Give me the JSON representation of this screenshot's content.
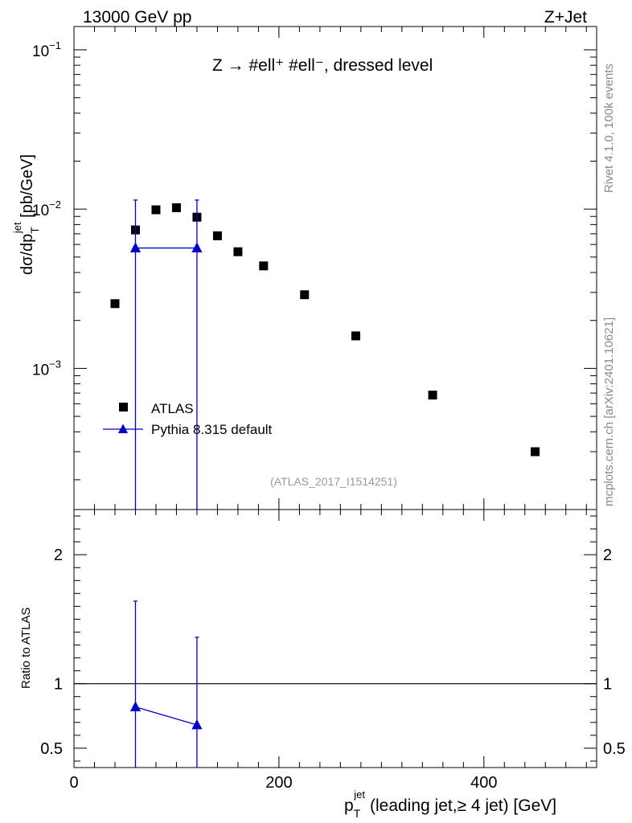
{
  "header": {
    "left": "13000 GeV pp",
    "right": "Z+Jet",
    "process": "Z → #ell⁺ #ell⁻, dressed level",
    "analysis_id": "(ATLAS_2017_I1514251)",
    "side_top": "Rivet 4.1.0,  100k events",
    "side_bottom": "mcplots.cern.ch [arXiv:2401.10621]"
  },
  "chart_data": [
    {
      "type": "scatter",
      "panel": "main",
      "ylabel": "dσ/dp_T^jet [pb/GeV]",
      "yscale": "log",
      "xlim": [
        0,
        510
      ],
      "ylim": [
        0.00013,
        0.14
      ],
      "y_ticks": [
        {
          "value": 0.1,
          "base": "10",
          "exp": "−1"
        },
        {
          "value": 0.01,
          "base": "10",
          "exp": "−2"
        },
        {
          "value": 0.001,
          "base": "10",
          "exp": "−3"
        }
      ],
      "legend": {
        "position": "lower-left",
        "entries": [
          "ATLAS",
          "Pythia 8.315 default"
        ]
      },
      "series": [
        {
          "name": "ATLAS",
          "marker": "square",
          "color": "#000000",
          "x": [
            40,
            60,
            80,
            100,
            120,
            140,
            160,
            185,
            225,
            275,
            350,
            450
          ],
          "y": [
            0.00255,
            0.0074,
            0.0099,
            0.0102,
            0.0089,
            0.0068,
            0.0054,
            0.0044,
            0.0029,
            0.0016,
            0.00068,
            0.0003
          ]
        },
        {
          "name": "Pythia 8.315 default",
          "marker": "triangle",
          "color": "#0000cc",
          "x": [
            60,
            120
          ],
          "y": [
            0.0057,
            0.0057
          ],
          "err_up": [
            0.0114,
            0.0114
          ],
          "err_down": [
            0.00013,
            0.00013
          ]
        }
      ]
    },
    {
      "type": "line",
      "panel": "ratio",
      "ylabel": "Ratio to ATLAS",
      "xlabel": "p_T^jet (leading jet,≥ 4 jet) [GeV]",
      "xlim": [
        0,
        510
      ],
      "ylim": [
        0.35,
        2.35
      ],
      "x_ticks": [
        "0",
        "200",
        "400"
      ],
      "y_ticks": [
        "0.5",
        "1",
        "2"
      ],
      "reference_line": 1,
      "series": [
        {
          "name": "Pythia 8.315 default",
          "color": "#0000cc",
          "x": [
            60,
            120
          ],
          "y": [
            0.82,
            0.68
          ],
          "err_up": [
            1.64,
            1.36
          ],
          "err_down": [
            0.0,
            0.0
          ]
        }
      ]
    }
  ]
}
